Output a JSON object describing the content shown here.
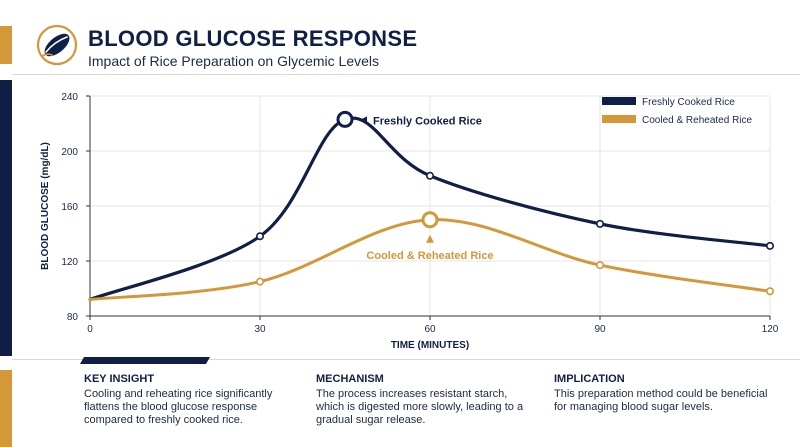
{
  "header": {
    "title": "BLOOD GLUCOSE RESPONSE",
    "subtitle": "Impact of Rice Preparation on Glycemic Levels"
  },
  "colors": {
    "navy": "#0f1f45",
    "gold": "#d4973a",
    "grid": "#e6e6e6"
  },
  "icons": {
    "logo": "rice-grain-icon"
  },
  "chart_data": {
    "type": "line",
    "title": "",
    "xlabel": "TIME (MINUTES)",
    "ylabel": "BLOOD GLUCOSE (mg/dL)",
    "xlim": [
      0,
      120
    ],
    "ylim": [
      80,
      240
    ],
    "x_ticks": [
      0,
      30,
      60,
      90,
      120
    ],
    "y_ticks": [
      80,
      120,
      160,
      200,
      240
    ],
    "grid": true,
    "legend_position": "top-right",
    "series": [
      {
        "name": "Freshly Cooked Rice",
        "color": "#0f1f45",
        "x": [
          0,
          30,
          45,
          60,
          90,
          120
        ],
        "y": [
          92,
          138,
          223,
          182,
          147,
          131
        ],
        "peak_index": 2,
        "annotation": "Freshly Cooked Rice"
      },
      {
        "name": "Cooled & Reheated Rice",
        "color": "#d4973a",
        "x": [
          0,
          30,
          60,
          90,
          120
        ],
        "y": [
          92,
          105,
          150,
          117,
          98
        ],
        "peak_index": 2,
        "annotation": "Cooled & Reheated Rice"
      }
    ]
  },
  "footer": [
    {
      "heading": "KEY INSIGHT",
      "lines": [
        "Cooling and reheating rice significantly",
        "flattens the blood glucose response",
        "compared to freshly cooked rice."
      ]
    },
    {
      "heading": "MECHANISM",
      "lines": [
        "The process increases resistant starch,",
        "which is digested more slowly, leading to a",
        "gradual sugar release."
      ]
    },
    {
      "heading": "IMPLICATION",
      "lines": [
        "This preparation method could be beneficial",
        "for managing blood sugar levels."
      ]
    }
  ]
}
